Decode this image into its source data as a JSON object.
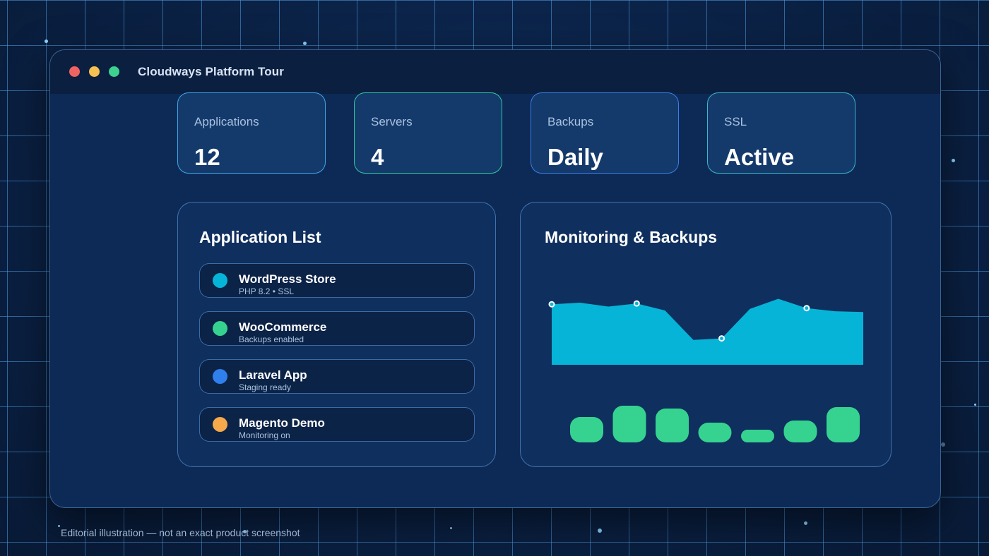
{
  "window": {
    "title": "Cloudways Platform Tour"
  },
  "stats": [
    {
      "label": "Applications",
      "value": "12",
      "border": "#3fa6e8"
    },
    {
      "label": "Servers",
      "value": "4",
      "border": "#35c9a0"
    },
    {
      "label": "Backups",
      "value": "Daily",
      "border": "#3a7ee8"
    },
    {
      "label": "SSL",
      "value": "Active",
      "border": "#38b8c8"
    }
  ],
  "app_list": {
    "title": "Application List",
    "items": [
      {
        "name": "WordPress Store",
        "sub": "PHP 8.2 • SSL",
        "color": "#06b4d8"
      },
      {
        "name": "WooCommerce",
        "sub": "Backups enabled",
        "color": "#35d38f"
      },
      {
        "name": "Laravel App",
        "sub": "Staging ready",
        "color": "#2f80ed"
      },
      {
        "name": "Magento Demo",
        "sub": "Monitoring on",
        "color": "#f5a94a"
      }
    ]
  },
  "monitoring": {
    "title": "Monitoring & Backups",
    "area_color": "#06b4d8",
    "bar_color": "#35d38f",
    "area_values": [
      78,
      80,
      75,
      79,
      70,
      32,
      34,
      72,
      85,
      73,
      69,
      68
    ],
    "marked_points": [
      0,
      3,
      6,
      9
    ],
    "bar_values": [
      36,
      52,
      48,
      28,
      18,
      31,
      50
    ]
  },
  "caption": "Editorial illustration — not an exact product screenshot"
}
